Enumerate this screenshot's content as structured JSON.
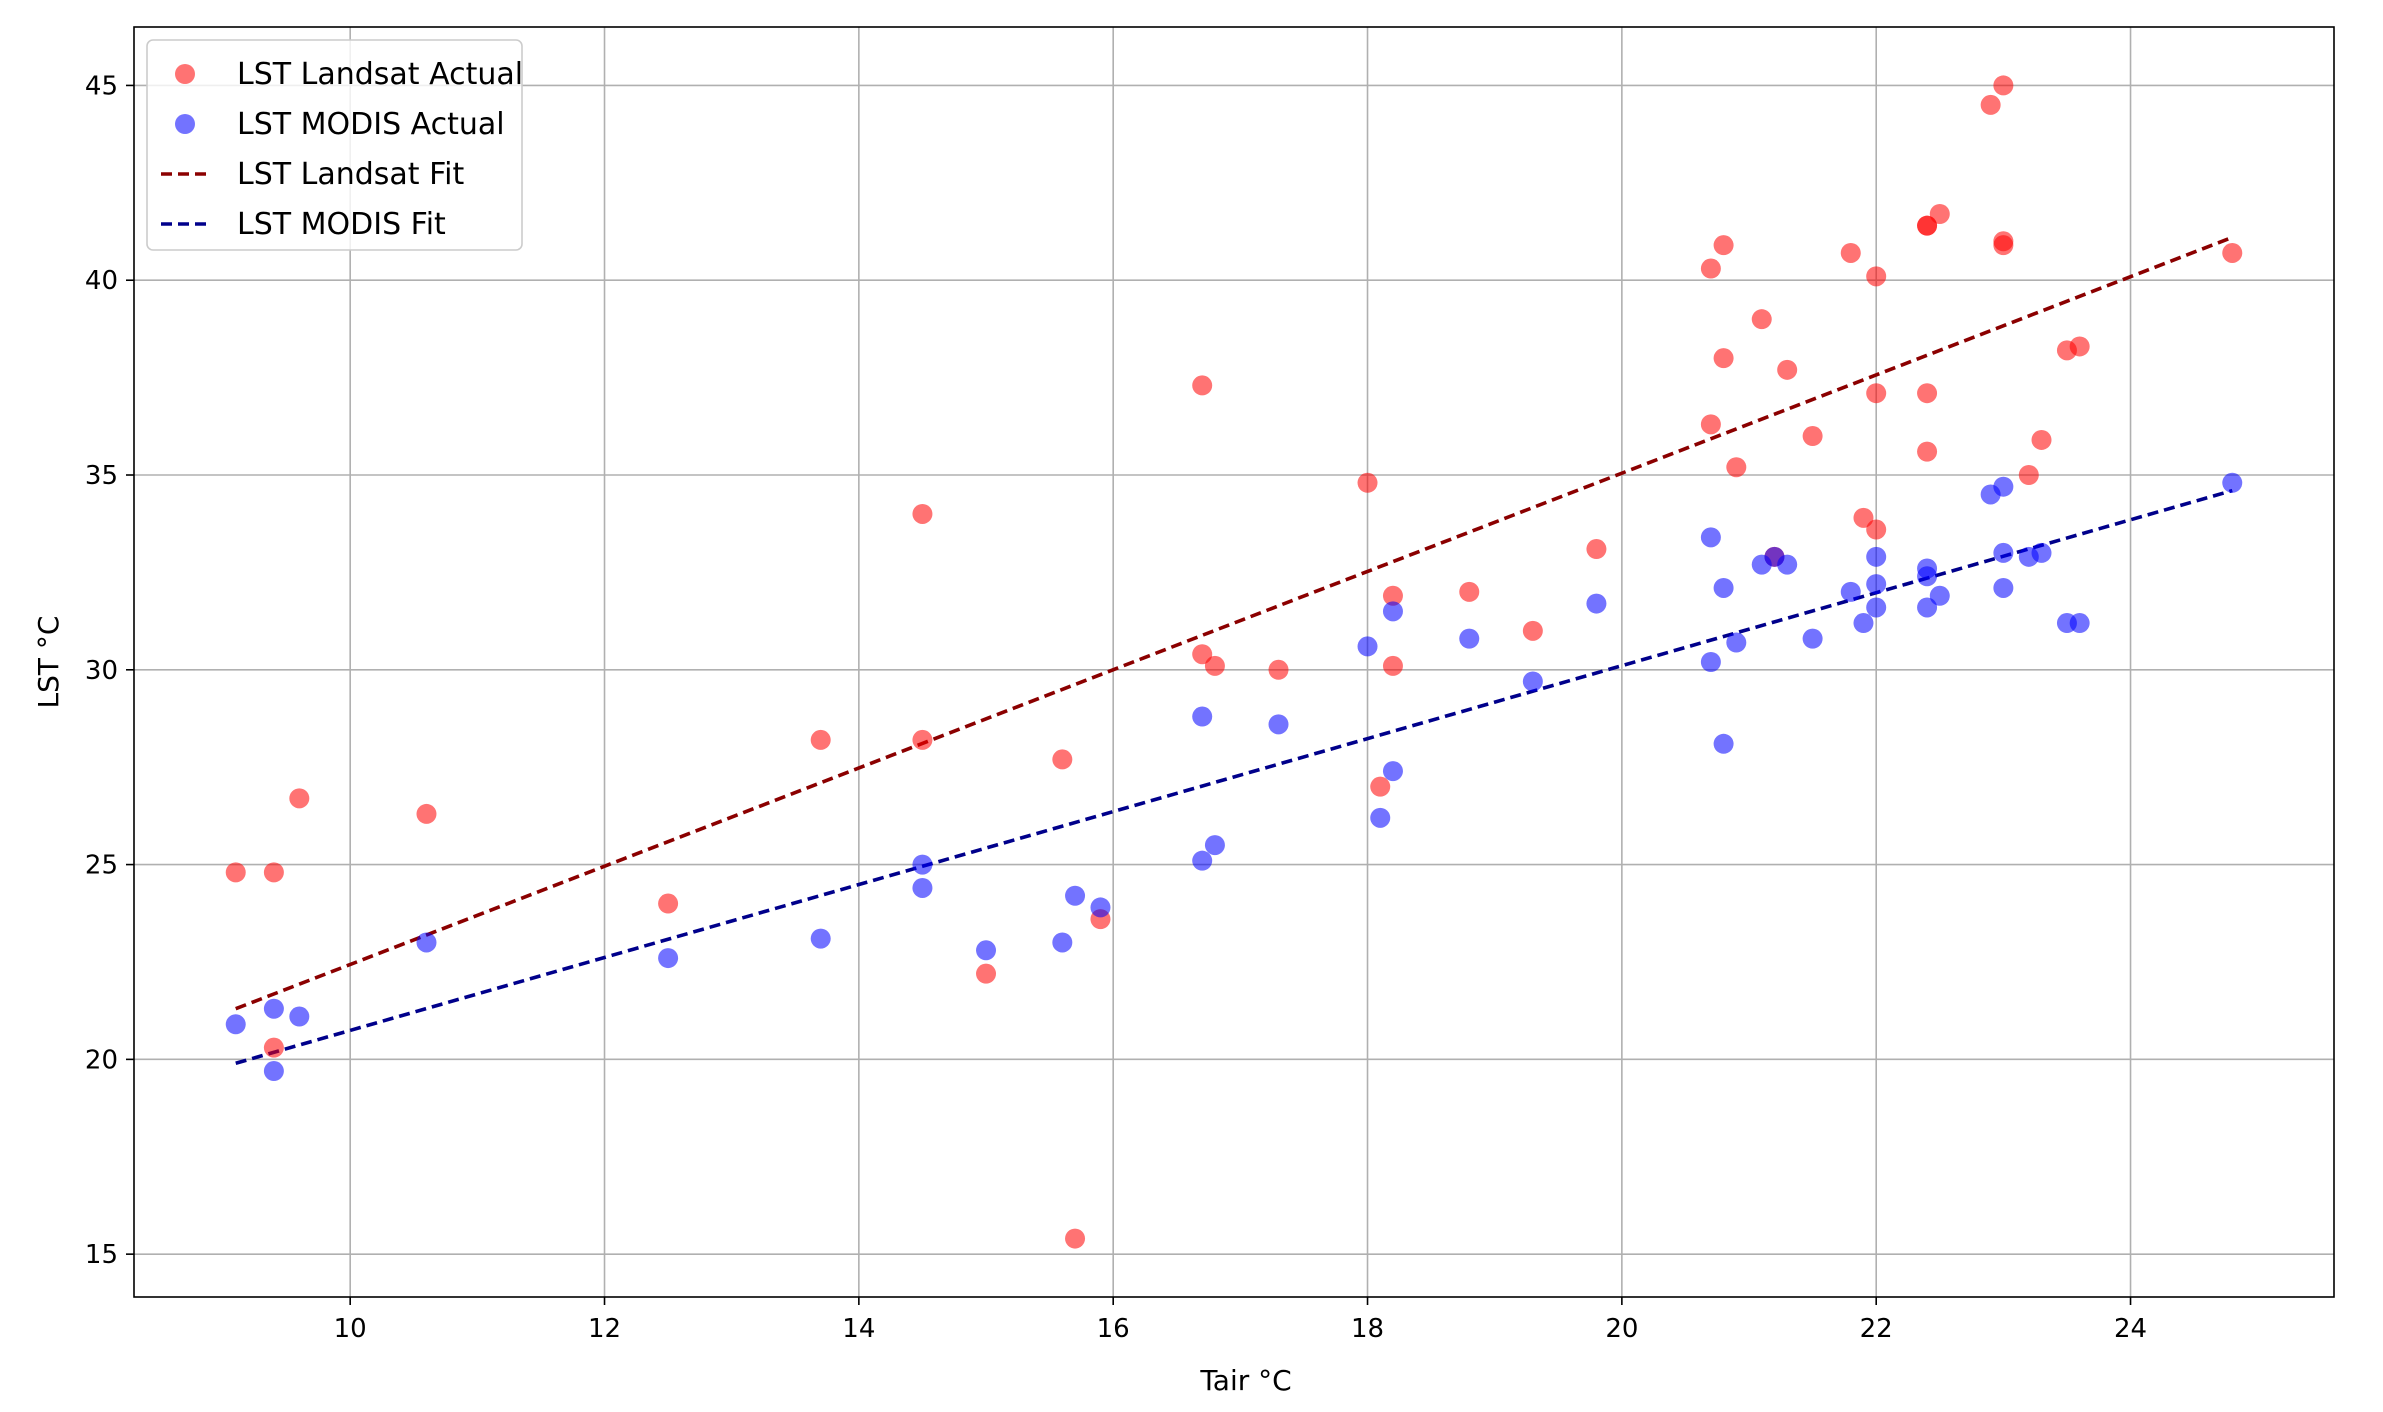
{
  "chart_data": {
    "type": "scatter",
    "xlabel": "Tair °C",
    "ylabel": "LST °C",
    "xlim": [
      8.3,
      25.6
    ],
    "ylim": [
      13.9,
      46.5
    ],
    "xticks": [
      10,
      12,
      14,
      16,
      18,
      20,
      22,
      24
    ],
    "yticks": [
      15,
      20,
      25,
      30,
      35,
      40,
      45
    ],
    "grid": true,
    "legend_position": "top-left",
    "series": [
      {
        "name": "LST Landsat Actual",
        "kind": "scatter",
        "color": "#ff0000",
        "alpha": 0.55,
        "points": [
          [
            9.1,
            24.8
          ],
          [
            9.4,
            24.8
          ],
          [
            9.4,
            20.3
          ],
          [
            9.6,
            26.7
          ],
          [
            10.6,
            26.3
          ],
          [
            12.5,
            24.0
          ],
          [
            13.7,
            28.2
          ],
          [
            14.5,
            34.0
          ],
          [
            14.5,
            28.2
          ],
          [
            15.0,
            22.2
          ],
          [
            15.6,
            27.7
          ],
          [
            15.7,
            15.4
          ],
          [
            15.9,
            23.6
          ],
          [
            16.7,
            37.3
          ],
          [
            16.7,
            30.4
          ],
          [
            16.8,
            30.1
          ],
          [
            17.3,
            30.0
          ],
          [
            18.0,
            34.8
          ],
          [
            18.1,
            27.0
          ],
          [
            18.2,
            31.9
          ],
          [
            18.2,
            30.1
          ],
          [
            18.8,
            32.0
          ],
          [
            19.3,
            31.0
          ],
          [
            19.8,
            33.1
          ],
          [
            20.7,
            40.3
          ],
          [
            20.7,
            36.3
          ],
          [
            20.8,
            40.9
          ],
          [
            20.8,
            38.0
          ],
          [
            20.9,
            35.2
          ],
          [
            21.1,
            39.0
          ],
          [
            21.2,
            32.9
          ],
          [
            21.3,
            37.7
          ],
          [
            21.5,
            36.0
          ],
          [
            21.8,
            40.7
          ],
          [
            21.9,
            33.9
          ],
          [
            22.0,
            40.1
          ],
          [
            22.0,
            37.1
          ],
          [
            22.0,
            33.6
          ],
          [
            22.4,
            41.4
          ],
          [
            22.4,
            41.4
          ],
          [
            22.4,
            37.1
          ],
          [
            22.4,
            35.6
          ],
          [
            22.5,
            41.7
          ],
          [
            22.9,
            44.5
          ],
          [
            23.0,
            45.0
          ],
          [
            23.0,
            41.0
          ],
          [
            23.0,
            40.9
          ],
          [
            23.2,
            35.0
          ],
          [
            23.3,
            35.9
          ],
          [
            23.5,
            38.2
          ],
          [
            23.6,
            38.3
          ],
          [
            24.8,
            40.7
          ]
        ]
      },
      {
        "name": "LST MODIS Actual",
        "kind": "scatter",
        "color": "#0000ff",
        "alpha": 0.55,
        "points": [
          [
            9.1,
            20.9
          ],
          [
            9.4,
            21.3
          ],
          [
            9.4,
            19.7
          ],
          [
            9.6,
            21.1
          ],
          [
            10.6,
            23.0
          ],
          [
            12.5,
            22.6
          ],
          [
            13.7,
            23.1
          ],
          [
            14.5,
            25.0
          ],
          [
            14.5,
            24.4
          ],
          [
            15.0,
            22.8
          ],
          [
            15.6,
            23.0
          ],
          [
            15.7,
            24.2
          ],
          [
            15.9,
            23.9
          ],
          [
            16.7,
            28.8
          ],
          [
            16.7,
            25.1
          ],
          [
            16.8,
            25.5
          ],
          [
            17.3,
            28.6
          ],
          [
            18.0,
            30.6
          ],
          [
            18.1,
            26.2
          ],
          [
            18.2,
            31.5
          ],
          [
            18.2,
            27.4
          ],
          [
            18.8,
            30.8
          ],
          [
            19.3,
            29.7
          ],
          [
            19.8,
            31.7
          ],
          [
            20.7,
            33.4
          ],
          [
            20.7,
            30.2
          ],
          [
            20.8,
            32.1
          ],
          [
            20.8,
            28.1
          ],
          [
            20.9,
            30.7
          ],
          [
            21.1,
            32.7
          ],
          [
            21.2,
            32.9
          ],
          [
            21.3,
            32.7
          ],
          [
            21.5,
            30.8
          ],
          [
            21.8,
            32.0
          ],
          [
            21.9,
            31.2
          ],
          [
            22.0,
            32.9
          ],
          [
            22.0,
            32.2
          ],
          [
            22.0,
            31.6
          ],
          [
            22.4,
            32.6
          ],
          [
            22.4,
            32.4
          ],
          [
            22.4,
            31.6
          ],
          [
            22.5,
            31.9
          ],
          [
            22.9,
            34.5
          ],
          [
            23.0,
            34.7
          ],
          [
            23.0,
            33.0
          ],
          [
            23.0,
            32.1
          ],
          [
            23.2,
            32.9
          ],
          [
            23.3,
            33.0
          ],
          [
            23.5,
            31.2
          ],
          [
            23.6,
            31.2
          ],
          [
            24.8,
            34.8
          ]
        ]
      },
      {
        "name": "LST Landsat Fit",
        "kind": "line",
        "style": "dashed",
        "color": "#8b0000",
        "points": [
          [
            9.1,
            21.3
          ],
          [
            24.8,
            41.1
          ]
        ]
      },
      {
        "name": "LST MODIS Fit",
        "kind": "line",
        "style": "dashed",
        "color": "#00008b",
        "points": [
          [
            9.1,
            19.9
          ],
          [
            24.8,
            34.6
          ]
        ]
      }
    ]
  }
}
